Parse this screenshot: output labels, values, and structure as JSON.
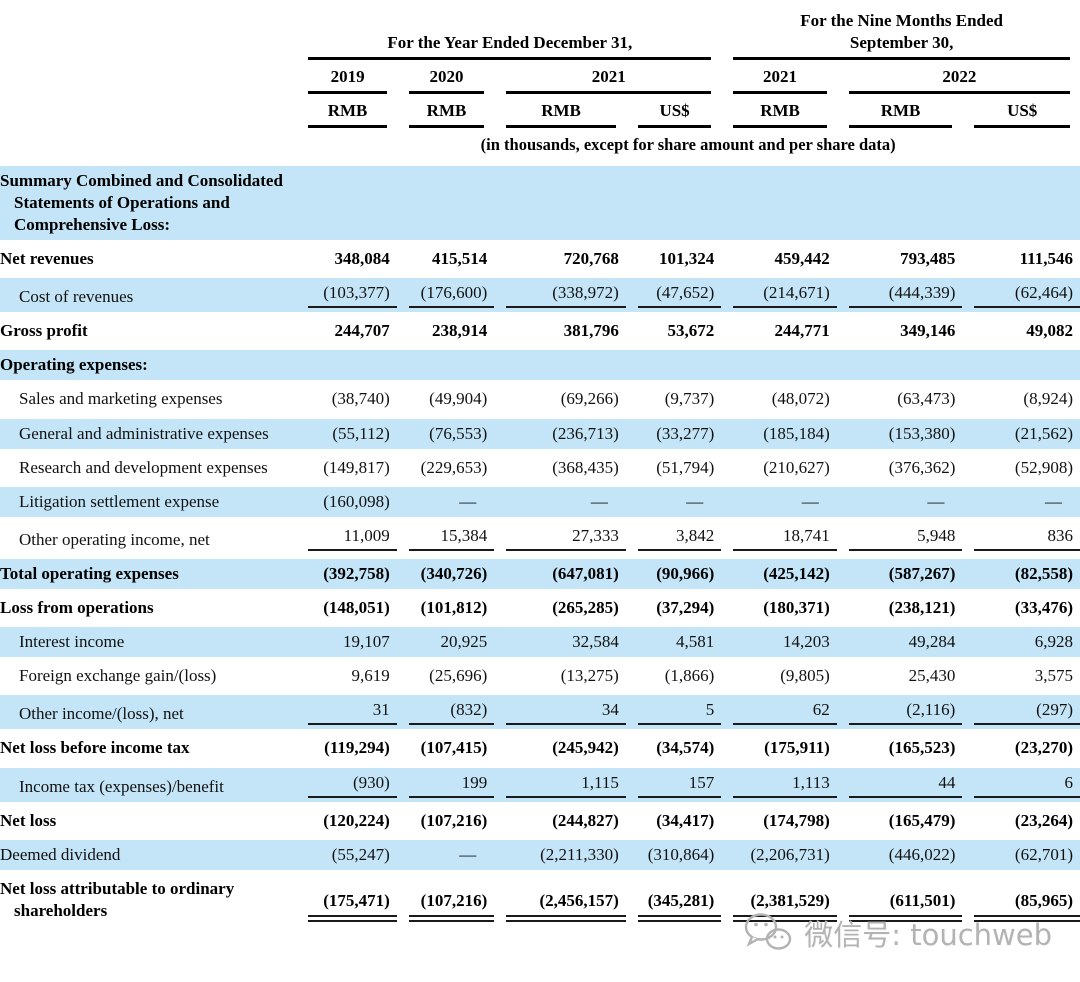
{
  "table": {
    "header": {
      "group_year": "For the Year Ended December 31,",
      "group_nine_months": "For the Nine Months Ended September 30,",
      "years": [
        "2019",
        "2020",
        "2021",
        "2021",
        "2022"
      ],
      "currencies": [
        "RMB",
        "RMB",
        "RMB",
        "US$",
        "RMB",
        "RMB",
        "US$"
      ],
      "note": "(in thousands, except for share amount and per share data)"
    },
    "rows": [
      {
        "label": "Summary Combined and Consolidated Statements of Operations and Comprehensive Loss:",
        "bold": true,
        "indent": 0,
        "values": [
          "",
          "",
          "",
          "",
          "",
          "",
          ""
        ]
      },
      {
        "label": "Net revenues",
        "bold": true,
        "indent": 0,
        "values": [
          "348,084",
          "415,514",
          "720,768",
          "101,324",
          "459,442",
          "793,485",
          "111,546"
        ]
      },
      {
        "label": "Cost of revenues",
        "bold": false,
        "indent": 1,
        "rule": "single",
        "values": [
          "(103,377)",
          "(176,600)",
          "(338,972)",
          "(47,652)",
          "(214,671)",
          "(444,339)",
          "(62,464)"
        ]
      },
      {
        "label": "Gross profit",
        "bold": true,
        "indent": 0,
        "values": [
          "244,707",
          "238,914",
          "381,796",
          "53,672",
          "244,771",
          "349,146",
          "49,082"
        ]
      },
      {
        "label": "Operating expenses:",
        "bold": true,
        "indent": 0,
        "values": [
          "",
          "",
          "",
          "",
          "",
          "",
          ""
        ]
      },
      {
        "label": "Sales and marketing expenses",
        "bold": false,
        "indent": 1,
        "values": [
          "(38,740)",
          "(49,904)",
          "(69,266)",
          "(9,737)",
          "(48,072)",
          "(63,473)",
          "(8,924)"
        ]
      },
      {
        "label": "General and administrative expenses",
        "bold": false,
        "indent": 1,
        "values": [
          "(55,112)",
          "(76,553)",
          "(236,713)",
          "(33,277)",
          "(185,184)",
          "(153,380)",
          "(21,562)"
        ]
      },
      {
        "label": "Research and development expenses",
        "bold": false,
        "indent": 1,
        "values": [
          "(149,817)",
          "(229,653)",
          "(368,435)",
          "(51,794)",
          "(210,627)",
          "(376,362)",
          "(52,908)"
        ]
      },
      {
        "label": "Litigation settlement expense",
        "bold": false,
        "indent": 1,
        "values": [
          "(160,098)",
          "—",
          "—",
          "—",
          "—",
          "—",
          "—"
        ]
      },
      {
        "label": "Other operating income, net",
        "bold": false,
        "indent": 1,
        "rule": "single",
        "values": [
          "11,009",
          "15,384",
          "27,333",
          "3,842",
          "18,741",
          "5,948",
          "836"
        ]
      },
      {
        "label": "Total operating expenses",
        "bold": true,
        "indent": 0,
        "values": [
          "(392,758)",
          "(340,726)",
          "(647,081)",
          "(90,966)",
          "(425,142)",
          "(587,267)",
          "(82,558)"
        ]
      },
      {
        "label": "Loss from operations",
        "bold": true,
        "indent": 0,
        "values": [
          "(148,051)",
          "(101,812)",
          "(265,285)",
          "(37,294)",
          "(180,371)",
          "(238,121)",
          "(33,476)"
        ]
      },
      {
        "label": "Interest income",
        "bold": false,
        "indent": 1,
        "values": [
          "19,107",
          "20,925",
          "32,584",
          "4,581",
          "14,203",
          "49,284",
          "6,928"
        ]
      },
      {
        "label": "Foreign exchange gain/(loss)",
        "bold": false,
        "indent": 1,
        "values": [
          "9,619",
          "(25,696)",
          "(13,275)",
          "(1,866)",
          "(9,805)",
          "25,430",
          "3,575"
        ]
      },
      {
        "label": "Other income/(loss), net",
        "bold": false,
        "indent": 1,
        "rule": "single",
        "values": [
          "31",
          "(832)",
          "34",
          "5",
          "62",
          "(2,116)",
          "(297)"
        ]
      },
      {
        "label": "Net loss before income tax",
        "bold": true,
        "indent": 0,
        "values": [
          "(119,294)",
          "(107,415)",
          "(245,942)",
          "(34,574)",
          "(175,911)",
          "(165,523)",
          "(23,270)"
        ]
      },
      {
        "label": "Income tax (expenses)/benefit",
        "bold": false,
        "indent": 1,
        "rule": "single",
        "values": [
          "(930)",
          "199",
          "1,115",
          "157",
          "1,113",
          "44",
          "6"
        ]
      },
      {
        "label": "Net loss",
        "bold": true,
        "indent": 0,
        "values": [
          "(120,224)",
          "(107,216)",
          "(244,827)",
          "(34,417)",
          "(174,798)",
          "(165,479)",
          "(23,264)"
        ]
      },
      {
        "label": "Deemed dividend",
        "bold": false,
        "indent": 0,
        "values": [
          "(55,247)",
          "—",
          "(2,211,330)",
          "(310,864)",
          "(2,206,731)",
          "(446,022)",
          "(62,701)"
        ]
      },
      {
        "label": "Net loss attributable to ordinary shareholders",
        "bold": true,
        "indent": 0,
        "rule": "double",
        "values": [
          "(175,471)",
          "(107,216)",
          "(2,456,157)",
          "(345,281)",
          "(2,381,529)",
          "(611,501)",
          "(85,965)"
        ]
      }
    ]
  },
  "watermark": {
    "label": "微信号: touchweb",
    "icon": "wechat-icon"
  },
  "colors": {
    "stripe": "#c4e5f7",
    "rule": "#1a1a1a",
    "text": "#111111",
    "watermark": "#b3b3b3"
  }
}
